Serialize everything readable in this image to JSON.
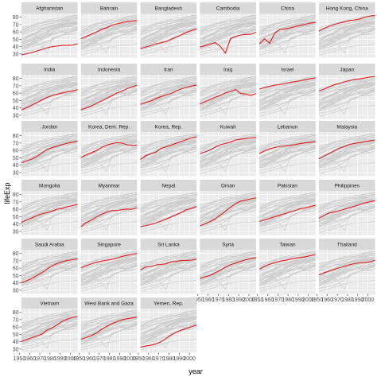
{
  "chart_data": {
    "type": "line",
    "xlabel": "year",
    "ylabel": "lifeExp",
    "x": [
      1952,
      1957,
      1962,
      1967,
      1972,
      1977,
      1982,
      1987,
      1992,
      1997,
      2002,
      2007
    ],
    "xlim": [
      1952,
      2007
    ],
    "ylim": [
      25,
      85
    ],
    "x_ticks": [
      1950,
      1960,
      1970,
      1980,
      1990,
      2000
    ],
    "x_tick_labels": [
      "1950",
      "1960",
      "1970",
      "1980",
      "1990",
      "2000"
    ],
    "y_ticks": [
      30,
      40,
      50,
      60,
      70,
      80
    ],
    "y_tick_labels": [
      "30",
      "40",
      "50",
      "60",
      "70",
      "80"
    ],
    "grid": true,
    "highlight_color": "#e41a1c",
    "background_color": "#cccccc",
    "panel_color": "#ebebeb",
    "strip_color": "#d9d9d9",
    "series": [
      {
        "name": "Afghanistan",
        "values": [
          28.8,
          30.3,
          32.0,
          34.0,
          36.1,
          38.4,
          39.9,
          40.8,
          41.7,
          41.8,
          42.1,
          43.8
        ]
      },
      {
        "name": "Bahrain",
        "values": [
          50.9,
          53.8,
          56.9,
          59.9,
          63.3,
          65.6,
          69.1,
          70.8,
          72.6,
          73.9,
          74.8,
          75.6
        ]
      },
      {
        "name": "Bangladesh",
        "values": [
          37.5,
          39.3,
          41.2,
          43.5,
          45.3,
          46.9,
          50.0,
          52.8,
          56.0,
          59.4,
          62.0,
          64.1
        ]
      },
      {
        "name": "Cambodia",
        "values": [
          39.4,
          41.4,
          43.4,
          45.4,
          40.3,
          31.2,
          51.0,
          53.9,
          55.8,
          56.5,
          56.8,
          59.7
        ]
      },
      {
        "name": "China",
        "values": [
          44.0,
          50.5,
          44.5,
          58.4,
          63.1,
          64.0,
          65.5,
          67.3,
          68.7,
          70.4,
          72.0,
          73.0
        ]
      },
      {
        "name": "Hong Kong, China",
        "values": [
          61.0,
          64.8,
          67.7,
          70.0,
          72.0,
          73.6,
          75.5,
          76.2,
          77.6,
          80.0,
          81.5,
          82.2
        ]
      },
      {
        "name": "India",
        "values": [
          37.4,
          40.2,
          43.6,
          47.2,
          50.7,
          54.2,
          56.6,
          58.6,
          60.2,
          61.8,
          62.9,
          64.7
        ]
      },
      {
        "name": "Indonesia",
        "values": [
          37.5,
          39.9,
          42.5,
          46.0,
          49.2,
          52.7,
          56.2,
          60.1,
          62.7,
          66.0,
          68.6,
          70.7
        ]
      },
      {
        "name": "Iran",
        "values": [
          44.9,
          47.2,
          49.3,
          52.5,
          55.2,
          57.7,
          59.6,
          63.0,
          65.7,
          68.0,
          69.5,
          71.0
        ]
      },
      {
        "name": "Iraq",
        "values": [
          45.3,
          48.4,
          51.5,
          54.5,
          56.9,
          60.4,
          62.0,
          65.0,
          59.5,
          58.8,
          57.0,
          59.5
        ]
      },
      {
        "name": "Israel",
        "values": [
          65.4,
          67.8,
          69.4,
          70.8,
          71.6,
          73.1,
          74.5,
          75.6,
          76.9,
          78.3,
          79.7,
          80.7
        ]
      },
      {
        "name": "Japan",
        "values": [
          63.0,
          65.5,
          68.7,
          71.4,
          73.4,
          75.4,
          77.1,
          78.7,
          79.4,
          80.7,
          82.0,
          82.6
        ]
      },
      {
        "name": "Jordan",
        "values": [
          43.2,
          45.7,
          48.1,
          51.6,
          56.5,
          61.1,
          63.7,
          65.9,
          68.0,
          69.8,
          71.3,
          72.5
        ]
      },
      {
        "name": "Korea, Dem. Rep.",
        "values": [
          50.1,
          54.1,
          56.7,
          59.9,
          64.0,
          67.2,
          69.1,
          70.6,
          70.0,
          67.7,
          66.7,
          67.3
        ]
      },
      {
        "name": "Korea, Rep.",
        "values": [
          47.5,
          52.7,
          55.3,
          57.7,
          62.6,
          64.8,
          67.1,
          69.8,
          72.2,
          74.6,
          77.0,
          78.6
        ]
      },
      {
        "name": "Kuwait",
        "values": [
          55.6,
          58.0,
          60.5,
          64.6,
          67.7,
          69.3,
          71.3,
          74.2,
          75.2,
          76.2,
          76.9,
          77.6
        ]
      },
      {
        "name": "Lebanon",
        "values": [
          55.9,
          59.5,
          62.1,
          63.9,
          65.4,
          66.1,
          67.0,
          67.9,
          69.3,
          70.3,
          71.0,
          72.0
        ]
      },
      {
        "name": "Malaysia",
        "values": [
          48.5,
          52.1,
          55.7,
          59.4,
          63.0,
          65.3,
          68.0,
          69.5,
          70.7,
          71.9,
          73.0,
          74.2
        ]
      },
      {
        "name": "Mongolia",
        "values": [
          42.2,
          45.2,
          48.3,
          51.3,
          53.8,
          55.5,
          57.5,
          60.2,
          61.3,
          63.6,
          65.0,
          66.8
        ]
      },
      {
        "name": "Myanmar",
        "values": [
          36.3,
          41.9,
          45.1,
          49.4,
          53.1,
          56.1,
          58.1,
          58.3,
          59.3,
          60.3,
          59.9,
          62.1
        ]
      },
      {
        "name": "Nepal",
        "values": [
          36.2,
          37.7,
          39.4,
          41.2,
          43.9,
          46.7,
          49.6,
          52.5,
          55.7,
          59.4,
          61.3,
          63.8
        ]
      },
      {
        "name": "Oman",
        "values": [
          37.6,
          40.1,
          43.2,
          46.9,
          52.1,
          57.4,
          62.7,
          67.7,
          71.2,
          72.5,
          74.2,
          75.6
        ]
      },
      {
        "name": "Pakistan",
        "values": [
          43.4,
          45.6,
          47.7,
          49.8,
          51.9,
          54.0,
          56.2,
          58.2,
          60.8,
          61.8,
          63.6,
          65.5
        ]
      },
      {
        "name": "Philippines",
        "values": [
          47.8,
          51.3,
          54.8,
          56.4,
          58.1,
          60.1,
          62.1,
          64.2,
          66.5,
          68.6,
          70.3,
          71.7
        ]
      },
      {
        "name": "Saudi Arabia",
        "values": [
          39.9,
          42.9,
          45.9,
          49.9,
          53.9,
          58.7,
          63.0,
          66.3,
          68.8,
          70.5,
          71.6,
          72.8
        ]
      },
      {
        "name": "Singapore",
        "values": [
          60.4,
          63.2,
          65.8,
          67.9,
          69.5,
          70.8,
          71.8,
          73.6,
          75.8,
          77.2,
          78.8,
          80.0
        ]
      },
      {
        "name": "Sri Lanka",
        "values": [
          57.6,
          61.5,
          62.2,
          64.3,
          65.0,
          65.9,
          68.8,
          69.0,
          70.4,
          70.5,
          70.8,
          72.4
        ]
      },
      {
        "name": "Syria",
        "values": [
          45.9,
          48.3,
          50.3,
          53.7,
          57.3,
          61.2,
          64.6,
          66.97,
          69.2,
          71.5,
          73.1,
          74.1
        ]
      },
      {
        "name": "Taiwan",
        "values": [
          58.5,
          62.4,
          65.2,
          67.5,
          69.4,
          70.6,
          72.2,
          73.4,
          74.3,
          75.3,
          76.99,
          78.4
        ]
      },
      {
        "name": "Thailand",
        "values": [
          50.8,
          53.6,
          56.1,
          58.3,
          60.4,
          62.5,
          64.6,
          66.1,
          67.3,
          67.5,
          68.6,
          70.6
        ]
      },
      {
        "name": "Vietnam",
        "values": [
          40.4,
          42.9,
          45.4,
          47.8,
          50.3,
          55.8,
          58.8,
          62.8,
          67.7,
          70.7,
          73.0,
          74.2
        ]
      },
      {
        "name": "West Bank and Gaza",
        "values": [
          43.2,
          45.7,
          48.1,
          51.6,
          56.5,
          60.8,
          64.4,
          67.0,
          69.7,
          71.1,
          72.4,
          73.4
        ]
      },
      {
        "name": "Yemen, Rep.",
        "values": [
          32.5,
          33.97,
          35.2,
          36.98,
          39.8,
          44.2,
          49.1,
          52.9,
          55.6,
          58.0,
          60.3,
          62.7
        ]
      }
    ]
  }
}
